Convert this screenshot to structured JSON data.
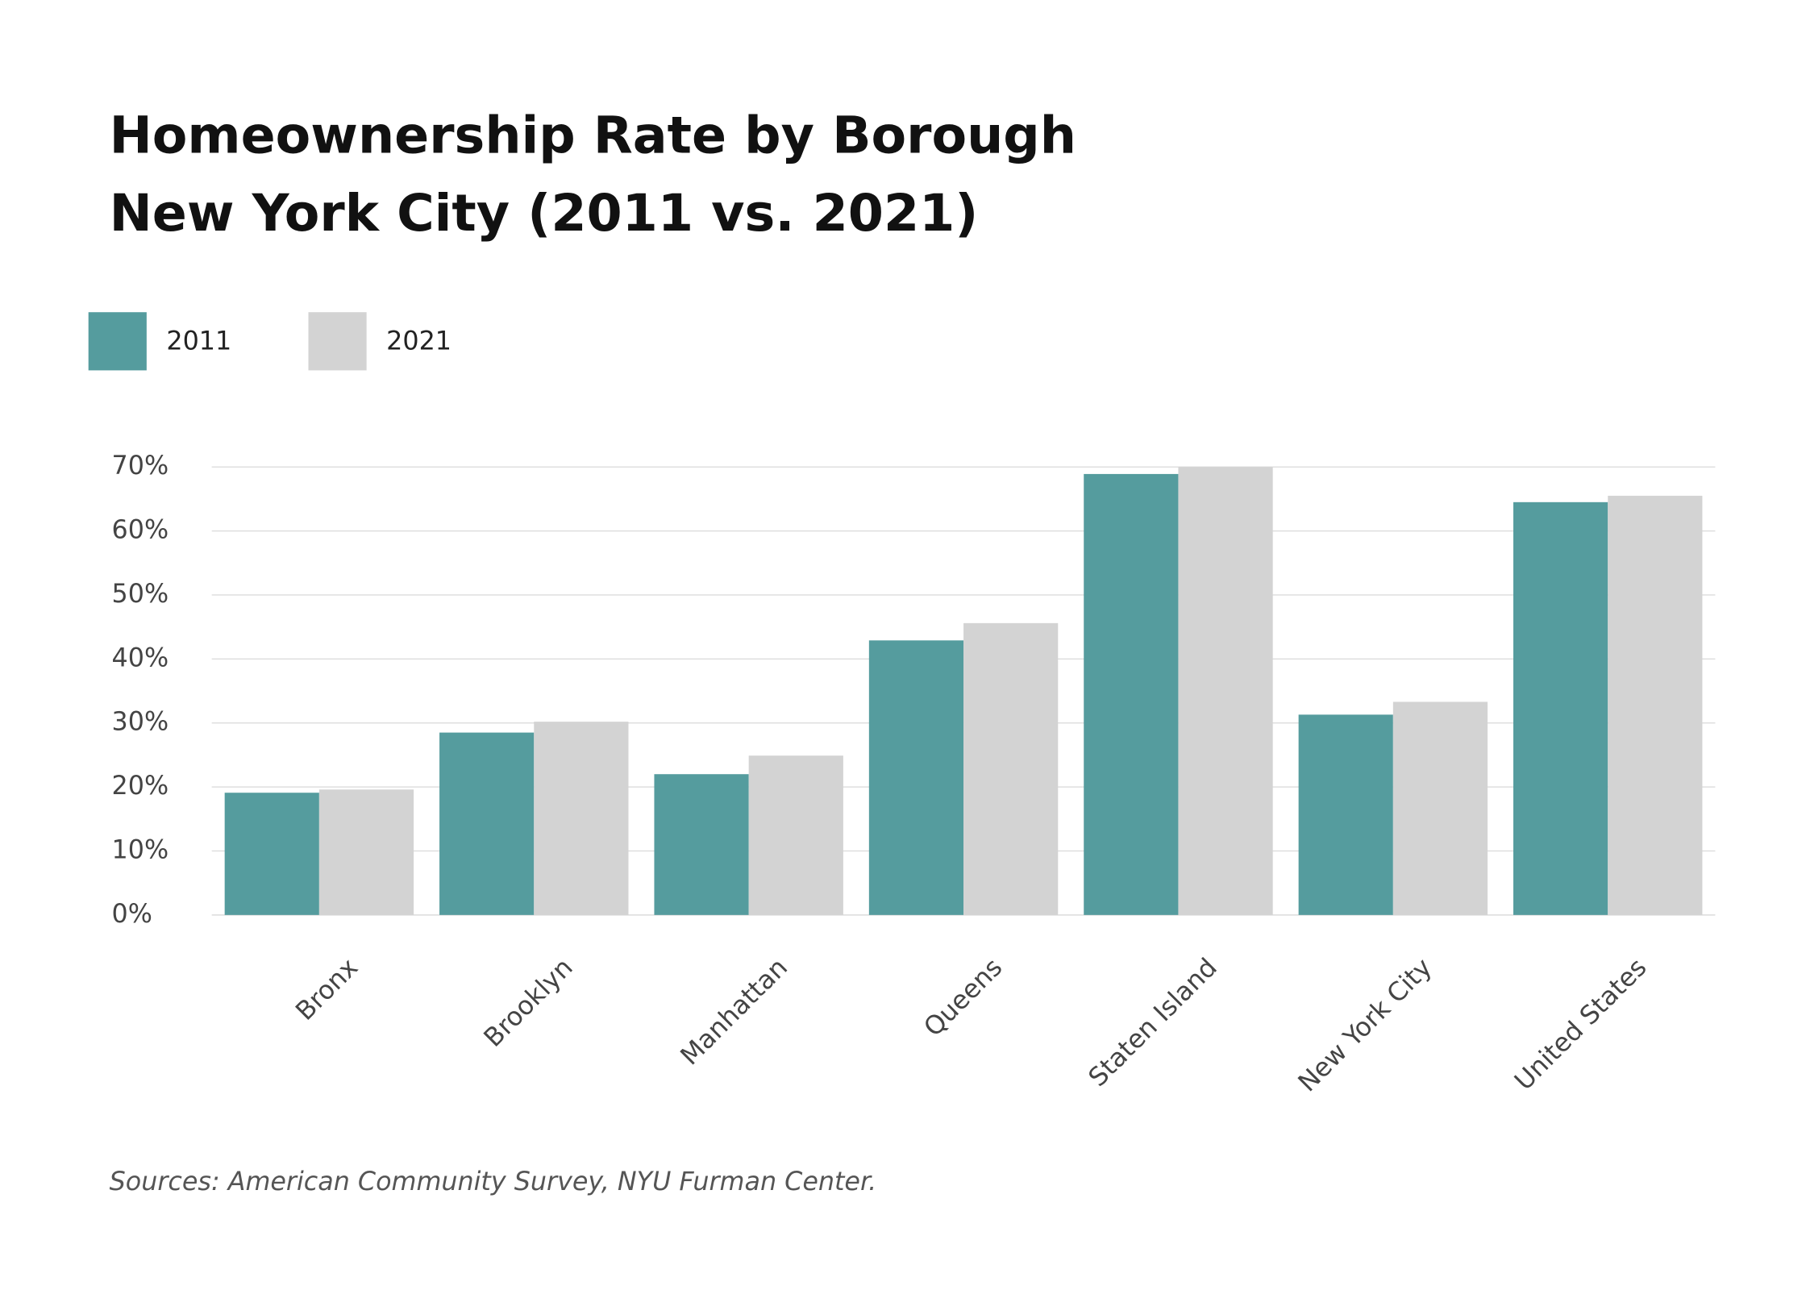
{
  "chart_data": {
    "type": "bar",
    "title_lines": [
      "Homeownership Rate by Borough",
      "New York City (2011 vs. 2021)"
    ],
    "categories": [
      "Bronx",
      "Brooklyn",
      "Manhattan",
      "Queens",
      "Staten Island",
      "New York City",
      "United States"
    ],
    "series": [
      {
        "name": "2011",
        "color": "#559c9e",
        "values": [
          19.1,
          28.5,
          22.0,
          42.9,
          68.9,
          31.3,
          64.5
        ]
      },
      {
        "name": "2021",
        "color": "#d3d3d3",
        "values": [
          19.6,
          30.2,
          24.9,
          45.6,
          70.0,
          33.3,
          65.5
        ]
      }
    ],
    "ylim": [
      0,
      70
    ],
    "yticks": [
      {
        "value": 0,
        "label": "0%"
      },
      {
        "value": 10,
        "label": "10%"
      },
      {
        "value": 20,
        "label": "20%"
      },
      {
        "value": 30,
        "label": "30%"
      },
      {
        "value": 40,
        "label": "40%"
      },
      {
        "value": 50,
        "label": "50%"
      },
      {
        "value": 60,
        "label": "60%"
      },
      {
        "value": 70,
        "label": "70%"
      }
    ],
    "grid": true,
    "legend": "top-left",
    "source": "Sources: American Community Survey, NYU Furman Center."
  }
}
